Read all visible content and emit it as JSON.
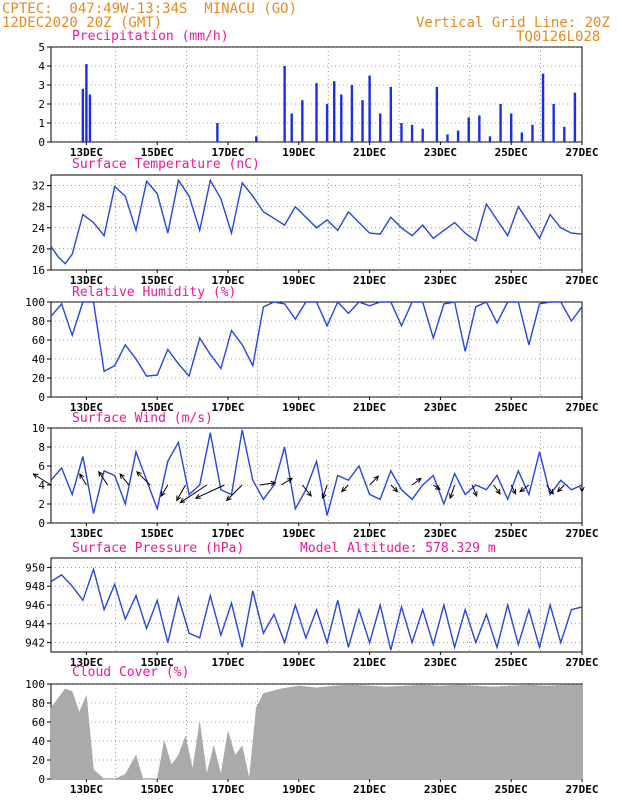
{
  "header": {
    "line1": "CPTEC:  047:49W-13:34S  MINACU (GO)",
    "line2": "12DEC2020 20Z (GMT)",
    "grid_note": "Vertical Grid Line: 20Z",
    "code": "TQ0126L028"
  },
  "colors": {
    "header": "#e8891e",
    "panel_title": "#e8199a",
    "line": "#2a44e0",
    "bar": "#1a2ee8",
    "arrow": "#000000",
    "cloud": "#aaaaaa"
  },
  "x_ticks": [
    "13DEC",
    "15DEC",
    "17DEC",
    "19DEC",
    "21DEC",
    "23DEC",
    "25DEC",
    "27DEC"
  ],
  "chart_data": [
    {
      "type": "bar",
      "title": "Precipitation (mm/h)",
      "ylim": [
        0,
        5
      ],
      "yticks": [
        "0",
        "1",
        "2",
        "3",
        "4",
        "5"
      ],
      "x": [
        12.9,
        13.0,
        13.1,
        16.7,
        17.8,
        18.6,
        18.8,
        19.1,
        19.5,
        19.8,
        20.0,
        20.2,
        20.5,
        20.8,
        21.0,
        21.3,
        21.6,
        21.9,
        22.2,
        22.5,
        22.9,
        23.2,
        23.5,
        23.8,
        24.1,
        24.4,
        24.7,
        25.0,
        25.3,
        25.6,
        25.9,
        26.2,
        26.5,
        26.8
      ],
      "values": [
        2.8,
        4.1,
        2.5,
        1.0,
        0.3,
        4.0,
        1.5,
        2.2,
        3.1,
        2.0,
        3.2,
        2.5,
        3.0,
        2.2,
        3.5,
        1.5,
        2.9,
        1.0,
        0.9,
        0.7,
        2.9,
        0.4,
        0.6,
        1.3,
        1.4,
        0.3,
        2.0,
        1.5,
        0.5,
        0.9,
        3.6,
        2.0,
        0.8,
        2.6
      ]
    },
    {
      "type": "line",
      "title": "Surface Temperature (nC)",
      "ylim": [
        16,
        34
      ],
      "yticks": [
        "16",
        "20",
        "24",
        "28",
        "32"
      ],
      "x": [
        12.0,
        12.2,
        12.4,
        12.6,
        12.9,
        13.2,
        13.5,
        13.8,
        14.1,
        14.4,
        14.7,
        15.0,
        15.3,
        15.6,
        15.9,
        16.2,
        16.5,
        16.8,
        17.1,
        17.4,
        17.7,
        18.0,
        18.3,
        18.6,
        18.9,
        19.2,
        19.5,
        19.8,
        20.1,
        20.4,
        20.7,
        21.0,
        21.3,
        21.6,
        21.9,
        22.2,
        22.5,
        22.8,
        23.1,
        23.4,
        23.7,
        24.0,
        24.3,
        24.6,
        24.9,
        25.2,
        25.5,
        25.8,
        26.1,
        26.4,
        26.7,
        27.0
      ],
      "values": [
        20.5,
        18.5,
        17.2,
        19.0,
        26.5,
        25.0,
        22.5,
        31.8,
        30.0,
        23.5,
        32.8,
        30.5,
        23.0,
        33.0,
        30.0,
        23.5,
        33.0,
        29.5,
        23.0,
        32.5,
        30.0,
        27.0,
        25.8,
        24.5,
        28.0,
        26.0,
        24.0,
        25.5,
        23.5,
        27.0,
        25.0,
        23.0,
        22.8,
        26.0,
        24.0,
        22.5,
        24.5,
        22.0,
        23.5,
        25.0,
        23.0,
        21.5,
        28.5,
        25.5,
        22.5,
        28.0,
        25.0,
        22.0,
        26.5,
        24.0,
        23.0,
        22.8
      ]
    },
    {
      "type": "line",
      "title": "Relative Humidity (%)",
      "ylim": [
        0,
        100
      ],
      "yticks": [
        "0",
        "20",
        "40",
        "60",
        "80",
        "100"
      ],
      "x": [
        12.0,
        12.3,
        12.6,
        12.9,
        13.2,
        13.5,
        13.8,
        14.1,
        14.4,
        14.7,
        15.0,
        15.3,
        15.6,
        15.9,
        16.2,
        16.5,
        16.8,
        17.1,
        17.4,
        17.7,
        18.0,
        18.3,
        18.6,
        18.9,
        19.2,
        19.5,
        19.8,
        20.1,
        20.4,
        20.7,
        21.0,
        21.3,
        21.6,
        21.9,
        22.2,
        22.5,
        22.8,
        23.1,
        23.4,
        23.7,
        24.0,
        24.3,
        24.6,
        24.9,
        25.2,
        25.5,
        25.8,
        26.1,
        26.4,
        26.7,
        27.0
      ],
      "values": [
        85,
        98,
        65,
        100,
        100,
        27,
        33,
        55,
        40,
        22,
        23,
        50,
        35,
        22,
        62,
        45,
        30,
        70,
        55,
        33,
        95,
        100,
        98,
        82,
        100,
        100,
        75,
        100,
        88,
        100,
        96,
        100,
        100,
        75,
        100,
        100,
        62,
        98,
        100,
        48,
        95,
        100,
        78,
        100,
        100,
        55,
        98,
        100,
        100,
        80,
        95
      ]
    },
    {
      "type": "line",
      "title": "Surface Wind (m/s)",
      "ylim": [
        0,
        10
      ],
      "yticks": [
        "0",
        "2",
        "4",
        "6",
        "8",
        "10"
      ],
      "x": [
        12.0,
        12.3,
        12.6,
        12.9,
        13.2,
        13.5,
        13.8,
        14.1,
        14.4,
        14.7,
        15.0,
        15.3,
        15.6,
        15.9,
        16.2,
        16.5,
        16.8,
        17.1,
        17.4,
        17.7,
        18.0,
        18.3,
        18.6,
        18.9,
        19.2,
        19.5,
        19.8,
        20.1,
        20.4,
        20.7,
        21.0,
        21.3,
        21.6,
        21.9,
        22.2,
        22.5,
        22.8,
        23.1,
        23.4,
        23.7,
        24.0,
        24.3,
        24.6,
        24.9,
        25.2,
        25.5,
        25.8,
        26.1,
        26.4,
        26.7,
        27.0
      ],
      "values": [
        4.5,
        5.8,
        3.0,
        7.0,
        1.0,
        5.5,
        5.0,
        2.0,
        7.5,
        4.5,
        1.5,
        6.5,
        8.5,
        3.0,
        4.0,
        9.5,
        3.5,
        3.0,
        9.8,
        4.5,
        2.5,
        4.0,
        8.0,
        1.5,
        3.5,
        6.5,
        0.8,
        5.0,
        4.5,
        6.0,
        3.0,
        2.5,
        5.5,
        3.5,
        2.5,
        4.0,
        5.0,
        2.0,
        5.2,
        3.0,
        4.0,
        3.5,
        5.0,
        2.5,
        5.5,
        3.0,
        7.5,
        3.0,
        4.5,
        3.5,
        4.0
      ],
      "arrows_x": [
        12.0,
        13.0,
        13.6,
        14.2,
        14.8,
        15.3,
        15.8,
        16.4,
        16.9,
        17.4,
        17.9,
        18.5,
        19.1,
        19.8,
        20.4,
        21.0,
        21.6,
        22.2,
        22.8,
        23.4,
        23.9,
        24.5,
        25.0,
        25.5,
        26.0,
        26.5,
        27.0
      ],
      "arrows_u": [
        -0.8,
        -0.3,
        -0.4,
        -0.4,
        -0.6,
        -0.3,
        -0.4,
        -1.2,
        -1.3,
        -0.7,
        0.7,
        0.5,
        0.4,
        -0.2,
        -0.3,
        0.4,
        0.3,
        0.4,
        0.3,
        -0.2,
        0.2,
        0.3,
        0.2,
        -0.4,
        0.3,
        -0.3,
        0.0
      ],
      "arrows_v": [
        0.5,
        0.5,
        0.6,
        0.5,
        0.6,
        -0.5,
        -0.7,
        -0.8,
        -0.6,
        -0.7,
        0.1,
        0.3,
        -0.5,
        -0.6,
        -0.3,
        0.4,
        -0.3,
        0.3,
        -0.2,
        -0.6,
        -0.5,
        -0.4,
        -0.4,
        -0.3,
        -0.4,
        -0.3,
        -0.3
      ]
    },
    {
      "type": "line",
      "title": "Surface Pressure (hPa)",
      "annotation": "Model Altitude: 578.329 m",
      "ylim": [
        941,
        951
      ],
      "yticks": [
        "942",
        "944",
        "946",
        "948",
        "950"
      ],
      "x": [
        12.0,
        12.3,
        12.6,
        12.9,
        13.2,
        13.5,
        13.8,
        14.1,
        14.4,
        14.7,
        15.0,
        15.3,
        15.6,
        15.9,
        16.2,
        16.5,
        16.8,
        17.1,
        17.4,
        17.7,
        18.0,
        18.3,
        18.6,
        18.9,
        19.2,
        19.5,
        19.8,
        20.1,
        20.4,
        20.7,
        21.0,
        21.3,
        21.6,
        21.9,
        22.2,
        22.5,
        22.8,
        23.1,
        23.4,
        23.7,
        24.0,
        24.3,
        24.6,
        24.9,
        25.2,
        25.5,
        25.8,
        26.1,
        26.4,
        26.7,
        27.0
      ],
      "values": [
        948.5,
        949.2,
        948.0,
        946.5,
        949.8,
        945.5,
        948.2,
        944.5,
        947.0,
        943.5,
        946.5,
        942.0,
        946.8,
        943.0,
        942.5,
        947.0,
        942.8,
        946.2,
        941.5,
        947.5,
        943.0,
        945.0,
        942.0,
        946.0,
        942.5,
        945.5,
        942.0,
        946.5,
        941.5,
        945.5,
        942.0,
        946.0,
        941.2,
        945.8,
        942.0,
        945.5,
        941.8,
        946.0,
        941.5,
        945.5,
        942.0,
        945.0,
        941.5,
        946.0,
        941.8,
        945.5,
        941.5,
        946.0,
        942.0,
        945.5,
        945.8
      ]
    },
    {
      "type": "area",
      "title": "Cloud Cover (%)",
      "ylim": [
        0,
        100
      ],
      "yticks": [
        "0",
        "20",
        "40",
        "60",
        "80",
        "100"
      ],
      "x": [
        12.0,
        12.2,
        12.4,
        12.6,
        12.8,
        13.0,
        13.2,
        13.5,
        13.8,
        14.1,
        14.4,
        14.6,
        14.8,
        15.0,
        15.2,
        15.4,
        15.6,
        15.8,
        16.0,
        16.2,
        16.4,
        16.6,
        16.8,
        17.0,
        17.2,
        17.4,
        17.6,
        17.8,
        18.0,
        18.5,
        19.0,
        19.5,
        20.0,
        20.5,
        21.0,
        21.5,
        22.0,
        22.5,
        23.0,
        23.5,
        24.0,
        24.5,
        25.0,
        25.5,
        26.0,
        26.5,
        27.0
      ],
      "values": [
        75,
        85,
        95,
        92,
        70,
        88,
        10,
        0,
        0,
        5,
        25,
        0,
        0,
        0,
        40,
        15,
        25,
        45,
        10,
        60,
        5,
        35,
        5,
        50,
        25,
        35,
        0,
        75,
        90,
        95,
        98,
        96,
        98,
        99,
        98,
        97,
        98,
        99,
        98,
        99,
        98,
        97,
        98,
        99,
        98,
        99,
        99
      ]
    }
  ]
}
